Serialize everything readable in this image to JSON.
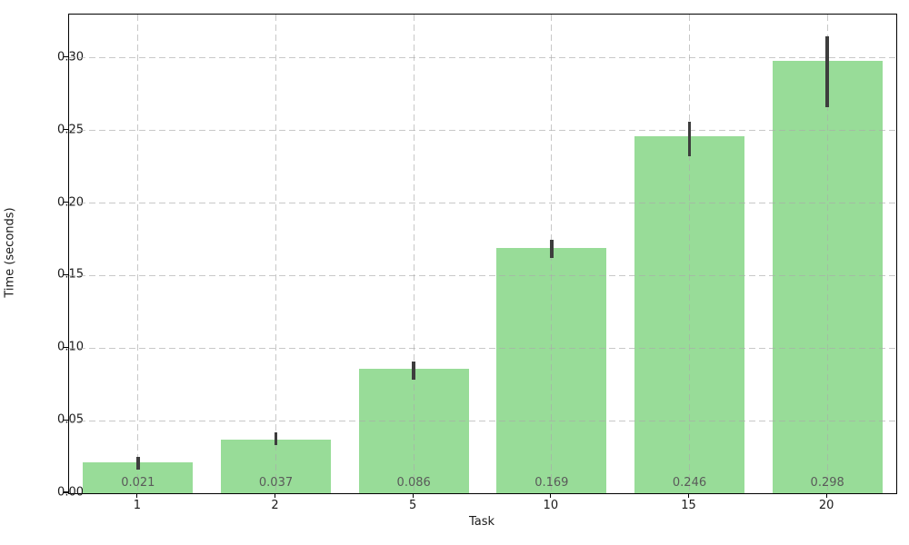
{
  "chart_data": {
    "type": "bar",
    "title": "",
    "xlabel": "Task",
    "ylabel": "Time (seconds)",
    "categories": [
      "1",
      "2",
      "5",
      "10",
      "15",
      "20"
    ],
    "values": [
      0.021,
      0.037,
      0.086,
      0.169,
      0.246,
      0.298
    ],
    "value_labels": [
      "0.021",
      "0.037",
      "0.086",
      "0.169",
      "0.246",
      "0.298"
    ],
    "error_low": [
      0.016,
      0.033,
      0.078,
      0.162,
      0.232,
      0.266
    ],
    "error_high": [
      0.025,
      0.042,
      0.091,
      0.175,
      0.256,
      0.315
    ],
    "yticks": [
      0.0,
      0.05,
      0.1,
      0.15,
      0.2,
      0.25,
      0.3
    ],
    "ytick_labels": [
      "0.00",
      "0.05",
      "0.10",
      "0.15",
      "0.20",
      "0.25",
      "0.30"
    ],
    "ylim": [
      0,
      0.33
    ],
    "bar_width_fraction": 0.8,
    "grid": "dashed, both axes, drawn over bars",
    "legend": "none",
    "colors": {
      "bar": "#98dc98",
      "error_bar": "#3d3d3d",
      "grid": "#aaaaaa",
      "value_label": "#5a5a5a",
      "axis_text": "#1a1a1a",
      "spine": "#000000",
      "background": "#ffffff"
    }
  }
}
